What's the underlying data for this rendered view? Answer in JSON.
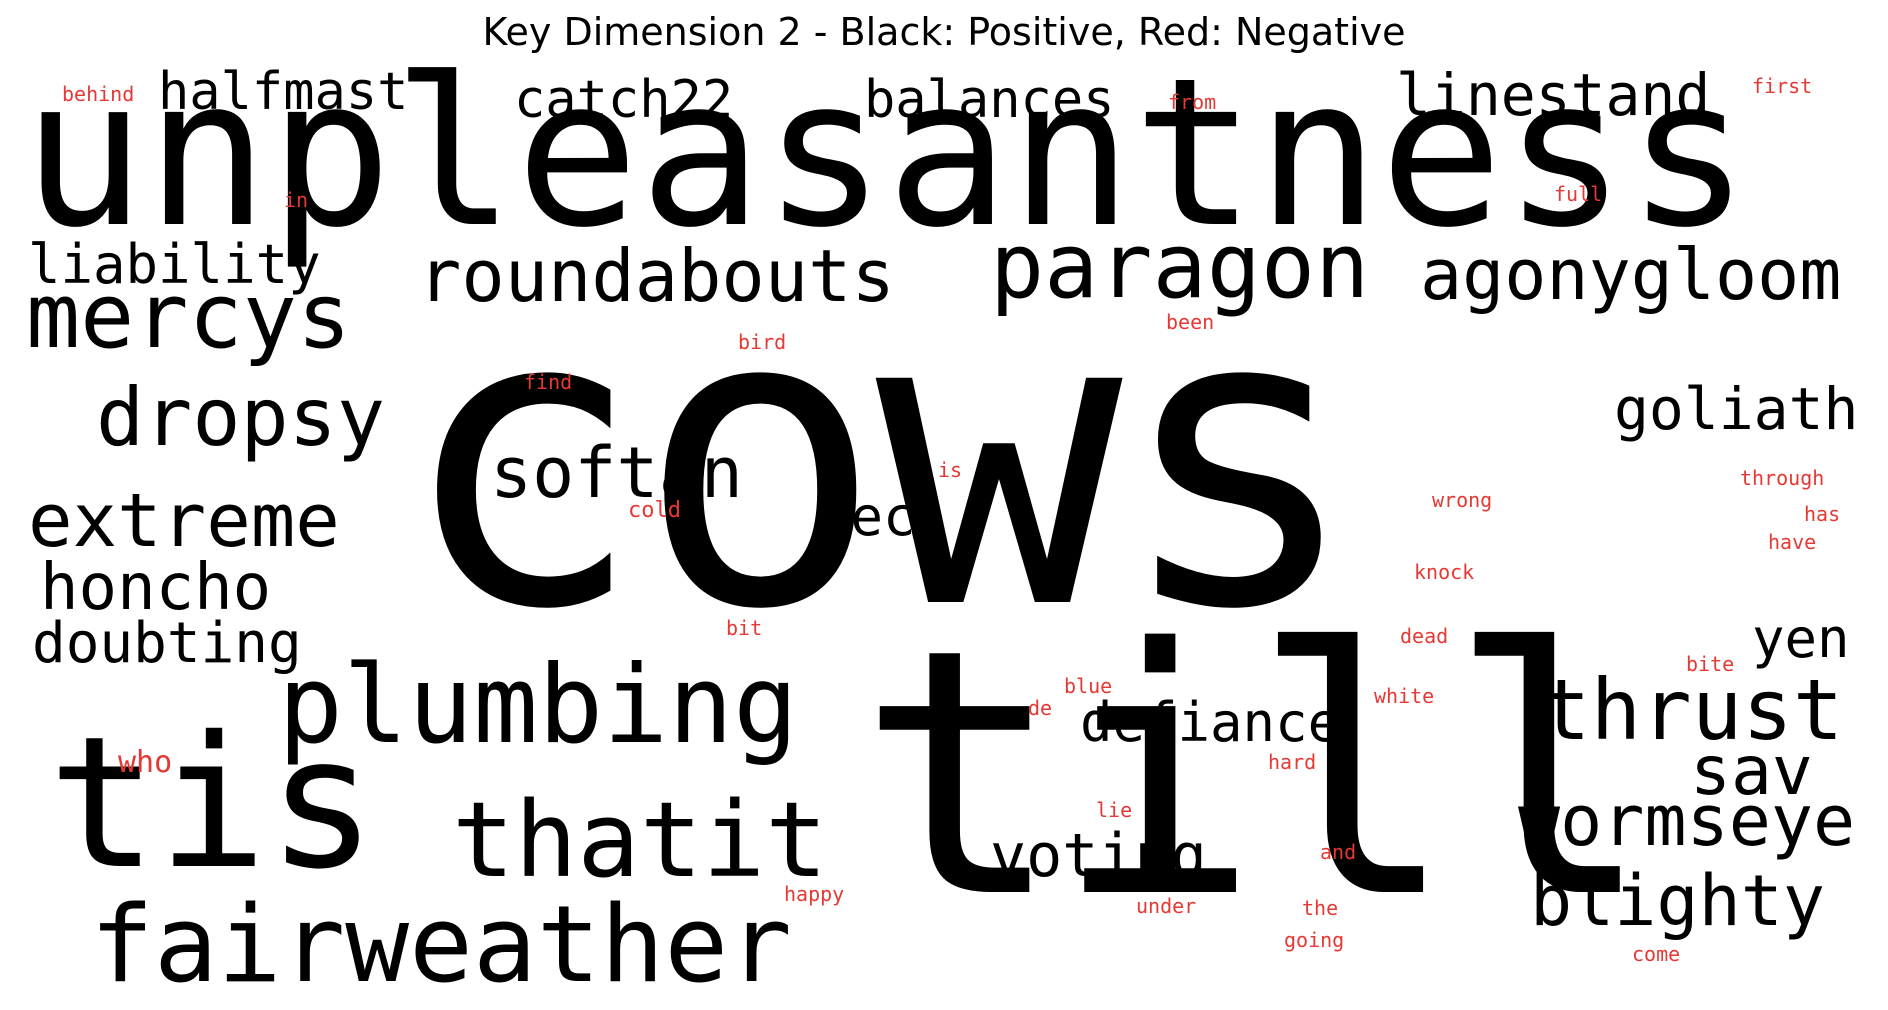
{
  "title": "Key Dimension 2 - Black: Positive, Red: Negative",
  "colors": {
    "positive": "#000000",
    "negative": "#e53935",
    "background": "#ffffff"
  },
  "positive_words": [
    "unpleasantness",
    "cows",
    "till",
    "tis",
    "plumbing",
    "thatit",
    "fairweather",
    "mercys",
    "roundabouts",
    "paragon",
    "agonygloom",
    "dropsy",
    "softan",
    "extreme",
    "honcho",
    "doubting",
    "liability",
    "halfmast",
    "catch22",
    "balances",
    "linestand",
    "goliath",
    "rec",
    "defiance",
    "voting",
    "thrust",
    "sav",
    "wormseye",
    "blighty",
    "yen"
  ],
  "negative_words": [
    "behind",
    "in",
    "from",
    "first",
    "full",
    "been",
    "bird",
    "find",
    "is",
    "through",
    "cold",
    "wrong",
    "has",
    "have",
    "knock",
    "bit",
    "dead",
    "bite",
    "blue",
    "de",
    "white",
    "who",
    "hard",
    "lie",
    "and",
    "happy",
    "under",
    "the",
    "going",
    "come"
  ]
}
